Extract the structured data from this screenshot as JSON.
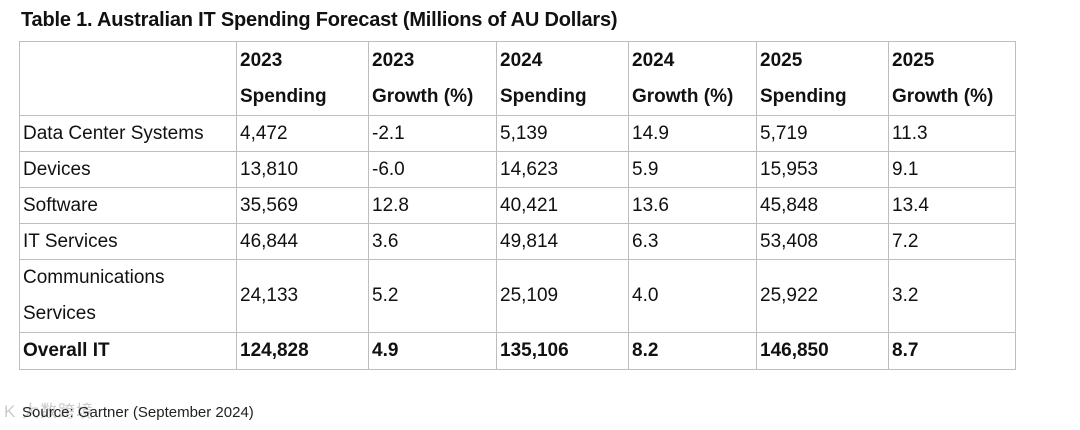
{
  "title": "Table 1. Australian IT Spending Forecast (Millions of AU Dollars)",
  "columns": [
    {
      "line1": "",
      "line2": ""
    },
    {
      "line1": "2023",
      "line2": "Spending"
    },
    {
      "line1": "2023",
      "line2": "Growth (%)"
    },
    {
      "line1": "2024",
      "line2": "Spending"
    },
    {
      "line1": "2024",
      "line2": "Growth (%)"
    },
    {
      "line1": "2025",
      "line2": "Spending"
    },
    {
      "line1": "2025",
      "line2": "Growth (%)"
    }
  ],
  "rows": [
    {
      "label": "Data Center Systems",
      "values": [
        "4,472",
        "-2.1",
        "5,139",
        "14.9",
        "5,719",
        "11.3"
      ]
    },
    {
      "label": "Devices",
      "values": [
        "13,810",
        "-6.0",
        "14,623",
        "5.9",
        "15,953",
        "9.1"
      ]
    },
    {
      "label": "Software",
      "values": [
        "35,569",
        "12.8",
        "40,421",
        "13.6",
        "45,848",
        "13.4"
      ]
    },
    {
      "label": "IT Services",
      "values": [
        "46,844",
        "3.6",
        "49,814",
        "6.3",
        "53,408",
        "7.2"
      ]
    },
    {
      "label": "Communications Services",
      "values": [
        "24,133",
        "5.2",
        "25,109",
        "4.0",
        "25,922",
        "3.2"
      ]
    },
    {
      "label": "Overall IT",
      "values": [
        "124,828",
        "4.9",
        "135,106",
        "8.2",
        "146,850",
        "8.7"
      ]
    }
  ],
  "source": "Source: Gartner (September 2024)",
  "watermark": "K 大数跨境"
}
